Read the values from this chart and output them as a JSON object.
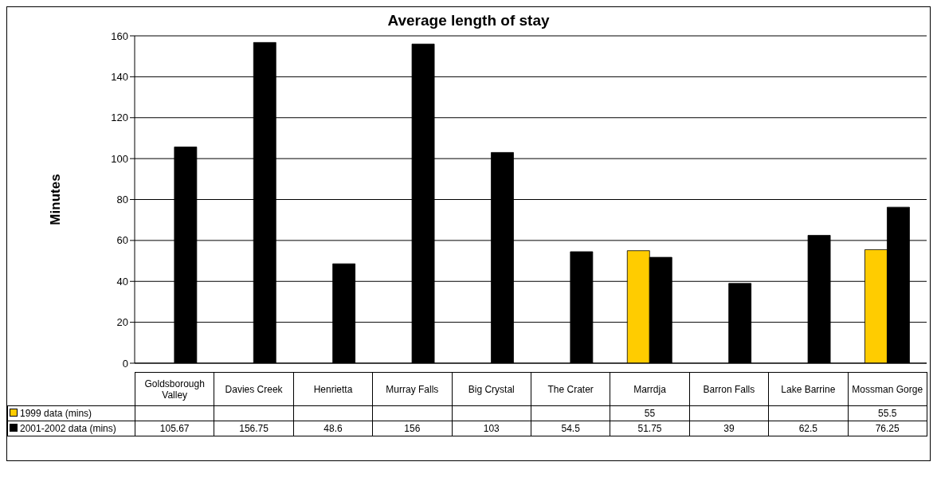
{
  "chart_data": {
    "type": "bar",
    "title": "Average length of stay",
    "ylabel": "Minutes",
    "categories": [
      "Goldsborough Valley",
      "Davies Creek",
      "Henrietta",
      "Murray Falls",
      "Big Crystal",
      "The Crater",
      "Marrdja",
      "Barron Falls",
      "Lake Barrine",
      "Mossman Gorge"
    ],
    "series": [
      {
        "name": "1999 data (mins)",
        "color": "#ffcc00",
        "values": [
          null,
          null,
          null,
          null,
          null,
          null,
          55,
          null,
          null,
          55.5
        ]
      },
      {
        "name": "2001-2002 data (mins)",
        "color": "#000000",
        "values": [
          105.67,
          156.75,
          48.6,
          156,
          103,
          54.5,
          51.75,
          39,
          62.5,
          76.25
        ]
      }
    ],
    "ylim": [
      0,
      160
    ],
    "yticks": [
      0,
      20,
      40,
      60,
      80,
      100,
      120,
      140,
      160
    ],
    "grid": "y",
    "legend": "bottom",
    "data_labels": true
  }
}
